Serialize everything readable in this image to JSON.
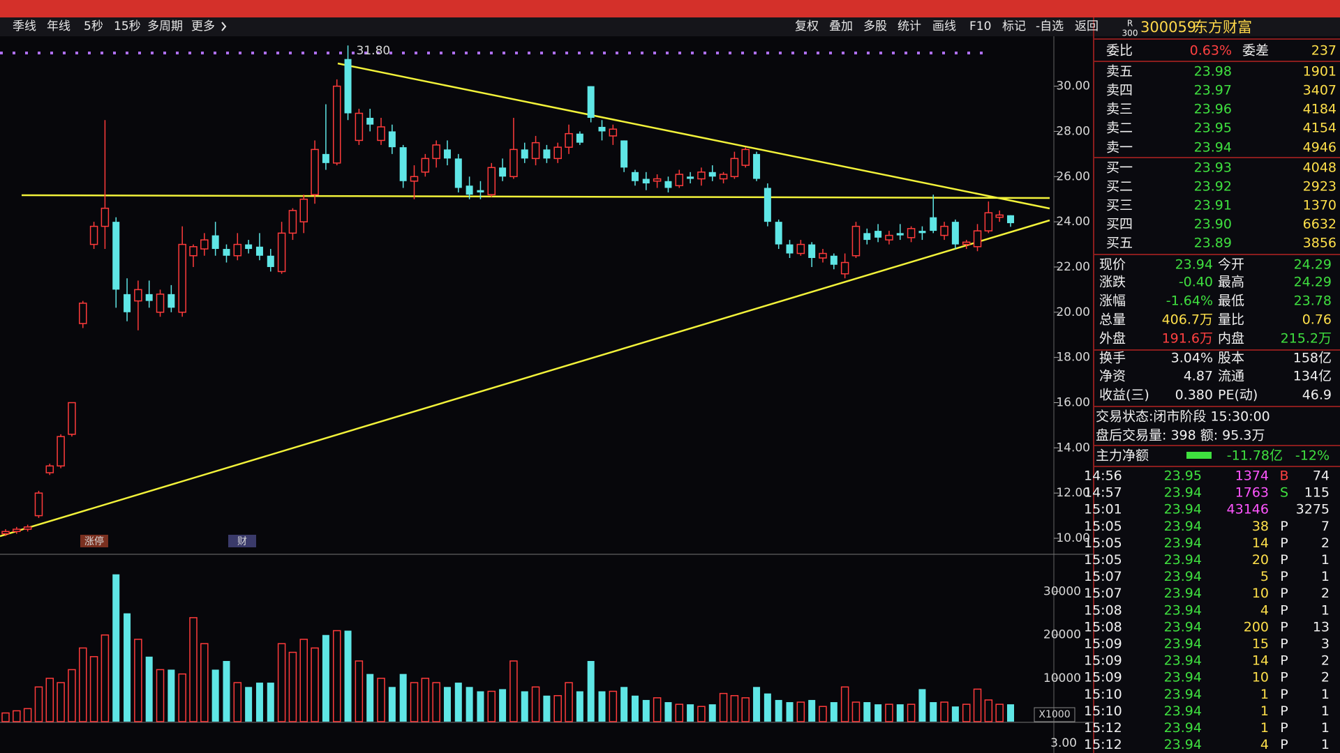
{
  "period_tabs": [
    "季线",
    "年线",
    "5秒",
    "15秒",
    "多周期",
    "更多"
  ],
  "tools": [
    "复权",
    "叠加",
    "多股",
    "统计",
    "画线",
    "F10",
    "标记",
    "-自选",
    "返回"
  ],
  "price_chart": {
    "type": "candlestick",
    "ylim": [
      9.6,
      31.9
    ],
    "yticks": [
      {
        "value": 10,
        "label": "10.00"
      },
      {
        "value": 12,
        "label": "12.00"
      },
      {
        "value": 14,
        "label": "14.00"
      },
      {
        "value": 16,
        "label": "16.00"
      },
      {
        "value": 18,
        "label": "18.00"
      },
      {
        "value": 20,
        "label": "20.00"
      },
      {
        "value": 22,
        "label": "22.00"
      },
      {
        "value": 24,
        "label": "24.00"
      },
      {
        "value": 26,
        "label": "26.00"
      },
      {
        "value": 28,
        "label": "28.00"
      },
      {
        "value": 30,
        "label": "30.00"
      }
    ],
    "open": [
      10.2,
      10.3,
      10.4,
      11.0,
      12.9,
      13.2,
      14.6,
      19.5,
      23.0,
      23.8,
      24.0,
      20.8,
      20.5,
      20.8,
      20.0,
      20.8,
      20.0,
      22.5,
      22.8,
      23.4,
      22.8,
      22.5,
      23.0,
      22.9,
      22.5,
      21.8,
      23.5,
      24.0,
      25.2,
      27.0,
      26.6,
      31.2,
      27.6,
      28.6,
      27.6,
      28.0,
      27.3,
      25.8,
      26.2,
      26.8,
      27.2,
      26.8,
      25.6,
      25.4,
      25.2,
      26.4,
      26.0,
      27.2,
      26.8,
      27.2,
      26.8,
      27.3,
      27.9,
      30.0,
      28.2,
      27.8,
      27.6,
      26.2,
      25.9,
      25.8,
      25.8,
      25.6,
      26.0,
      25.9,
      26.2,
      25.9,
      26.0,
      26.5,
      27.0,
      25.5,
      24.0,
      23.0,
      22.6,
      23.0,
      22.4,
      22.5,
      21.7,
      22.5,
      23.5,
      23.6,
      23.2,
      23.5,
      23.3,
      23.6,
      24.2,
      23.4,
      24.0,
      23.0,
      22.9,
      23.6,
      24.2,
      24.29
    ],
    "high": [
      10.4,
      10.5,
      10.6,
      12.1,
      13.3,
      14.6,
      16.0,
      20.5,
      24.0,
      28.5,
      24.2,
      21.5,
      21.4,
      21.4,
      21.0,
      21.2,
      23.8,
      23.0,
      23.5,
      24.0,
      23.0,
      23.5,
      23.2,
      23.5,
      22.8,
      24.0,
      24.6,
      25.2,
      27.6,
      29.2,
      30.3,
      31.8,
      29.0,
      29.0,
      28.6,
      28.3,
      27.4,
      26.5,
      27.0,
      27.6,
      27.6,
      27.0,
      26.0,
      25.8,
      26.6,
      26.8,
      28.6,
      27.5,
      27.8,
      27.4,
      27.5,
      28.3,
      28.0,
      30.0,
      28.5,
      28.3,
      27.6,
      26.3,
      26.2,
      26.1,
      26.0,
      26.3,
      26.2,
      26.4,
      26.5,
      26.2,
      27.1,
      27.3,
      27.1,
      25.7,
      24.1,
      23.2,
      23.2,
      23.1,
      22.8,
      22.6,
      22.6,
      24.0,
      23.7,
      23.9,
      23.6,
      23.9,
      23.8,
      23.8,
      25.2,
      24.0,
      24.1,
      23.2,
      23.9,
      24.9,
      24.5,
      24.29
    ],
    "low": [
      10.1,
      10.2,
      10.3,
      10.9,
      12.8,
      13.1,
      14.5,
      19.3,
      22.8,
      22.8,
      20.2,
      19.6,
      19.2,
      20.2,
      19.8,
      20.0,
      19.8,
      22.0,
      22.5,
      22.5,
      22.2,
      22.3,
      22.6,
      22.3,
      21.8,
      21.7,
      23.2,
      23.5,
      24.8,
      26.3,
      26.5,
      28.5,
      27.4,
      28.0,
      27.4,
      27.0,
      25.5,
      25.0,
      26.0,
      26.4,
      26.5,
      25.3,
      25.0,
      25.0,
      25.1,
      25.8,
      25.9,
      26.6,
      26.5,
      26.6,
      26.6,
      27.0,
      27.4,
      28.4,
      27.6,
      27.4,
      26.2,
      25.6,
      25.4,
      25.5,
      25.3,
      25.5,
      25.7,
      25.6,
      25.8,
      25.7,
      25.9,
      26.4,
      25.8,
      23.8,
      22.8,
      22.4,
      22.5,
      22.0,
      22.2,
      21.9,
      21.5,
      22.4,
      23.0,
      23.1,
      23.0,
      23.2,
      23.1,
      23.2,
      23.5,
      23.2,
      22.8,
      22.8,
      22.7,
      23.5,
      24.0,
      23.78
    ],
    "close": [
      10.3,
      10.4,
      10.5,
      12.0,
      13.2,
      14.5,
      16.0,
      20.4,
      23.8,
      24.6,
      21.0,
      20.0,
      21.0,
      20.5,
      20.8,
      20.2,
      23.0,
      22.9,
      23.2,
      22.8,
      22.5,
      23.0,
      22.8,
      22.5,
      22.0,
      23.5,
      24.5,
      25.0,
      27.2,
      26.6,
      30.0,
      28.8,
      28.8,
      28.3,
      28.2,
      27.3,
      25.8,
      26.0,
      26.8,
      27.4,
      26.8,
      25.5,
      25.2,
      25.3,
      26.4,
      26.0,
      27.2,
      26.8,
      27.5,
      26.8,
      27.3,
      27.9,
      27.5,
      28.6,
      28.0,
      28.1,
      26.4,
      25.8,
      25.7,
      25.9,
      25.5,
      26.1,
      25.9,
      26.2,
      26.0,
      26.1,
      26.8,
      27.2,
      25.9,
      24.0,
      23.0,
      22.6,
      23.0,
      22.4,
      22.6,
      22.1,
      22.2,
      23.8,
      23.2,
      23.3,
      23.4,
      23.4,
      23.7,
      23.5,
      23.6,
      23.8,
      23.0,
      23.1,
      23.6,
      24.4,
      24.3,
      23.94
    ],
    "high_label": "31.80",
    "markers": [
      "涨停",
      "财"
    ]
  },
  "volume_chart": {
    "type": "bar",
    "ylim": [
      0,
      37500
    ],
    "yticks": [
      10000,
      20000,
      30000
    ],
    "values": [
      2000,
      2500,
      3000,
      8000,
      10000,
      9000,
      12000,
      17000,
      15000,
      20000,
      34000,
      25000,
      19000,
      15000,
      12000,
      12000,
      11000,
      24000,
      18000,
      12000,
      14000,
      9000,
      8000,
      9000,
      9000,
      18000,
      16000,
      19000,
      17000,
      20000,
      21000,
      21000,
      14000,
      11000,
      10000,
      8000,
      11000,
      9000,
      10000,
      9000,
      8000,
      9000,
      8000,
      7000,
      7000,
      7500,
      14000,
      7000,
      8000,
      6000,
      6000,
      9000,
      7000,
      14000,
      7000,
      7000,
      8000,
      6000,
      5000,
      5500,
      4500,
      4000,
      4000,
      3500,
      4000,
      6500,
      6000,
      5500,
      8000,
      6500,
      5000,
      4500,
      4500,
      5000,
      3500,
      4500,
      8000,
      4500,
      4500,
      4000,
      4000,
      4000,
      4000,
      7500,
      4500,
      4500,
      3500,
      4000,
      7500,
      5000,
      4000,
      4000
    ],
    "unit": "X1000"
  },
  "indicator_chart": {
    "tick": "3.00"
  },
  "quote": {
    "badge": [
      "R",
      "300"
    ],
    "code": "300059",
    "name": "东方财富",
    "order_ratio": [
      "委比",
      "0.63%",
      "委差",
      "237"
    ],
    "asks": [
      [
        "卖五",
        "23.98",
        "1901"
      ],
      [
        "卖四",
        "23.97",
        "3407"
      ],
      [
        "卖三",
        "23.96",
        "4184"
      ],
      [
        "卖二",
        "23.95",
        "4154"
      ],
      [
        "卖一",
        "23.94",
        "4946"
      ]
    ],
    "bids": [
      [
        "买一",
        "23.93",
        "4048"
      ],
      [
        "买二",
        "23.92",
        "2923"
      ],
      [
        "买三",
        "23.91",
        "1370"
      ],
      [
        "买四",
        "23.90",
        "6632"
      ],
      [
        "买五",
        "23.89",
        "3856"
      ]
    ],
    "stats": [
      [
        "现价",
        "23.94",
        "今开",
        "24.29"
      ],
      [
        "涨跌",
        "-0.40",
        "最高",
        "24.29"
      ],
      [
        "涨幅",
        "-1.64%",
        "最低",
        "23.78"
      ],
      [
        "总量",
        "406.7万",
        "量比",
        "0.76"
      ],
      [
        "外盘",
        "191.6万",
        "内盘",
        "215.2万"
      ],
      [
        "换手",
        "3.04%",
        "股本",
        "158亿"
      ],
      [
        "净资",
        "4.87",
        "流通",
        "134亿"
      ],
      [
        "收益(三)",
        "0.380",
        "PE(动)",
        "46.9"
      ]
    ],
    "status": [
      "交易状态:闭市阶段 15:30:00",
      "盘后交易量: 398 额: 95.3万"
    ],
    "main_force": [
      "主力净额",
      "-11.78亿",
      "-12%"
    ],
    "trades": [
      {
        "time": "14:56",
        "price": "23.95",
        "volume": "1374",
        "flag": "B",
        "count": "74"
      },
      {
        "time": "14:57",
        "price": "23.94",
        "volume": "1763",
        "flag": "S",
        "count": "115"
      },
      {
        "time": "15:01",
        "price": "23.94",
        "volume": "43146",
        "count": "3275"
      },
      {
        "time": "15:05",
        "price": "23.94",
        "volume": "38",
        "flag": "P",
        "count": "7"
      },
      {
        "time": "15:05",
        "price": "23.94",
        "volume": "14",
        "flag": "P",
        "count": "2"
      },
      {
        "time": "15:05",
        "price": "23.94",
        "volume": "20",
        "flag": "P",
        "count": "1"
      },
      {
        "time": "15:07",
        "price": "23.94",
        "volume": "5",
        "flag": "P",
        "count": "1"
      },
      {
        "time": "15:07",
        "price": "23.94",
        "volume": "10",
        "flag": "P",
        "count": "2"
      },
      {
        "time": "15:08",
        "price": "23.94",
        "volume": "4",
        "flag": "P",
        "count": "1"
      },
      {
        "time": "15:08",
        "price": "23.94",
        "volume": "200",
        "flag": "P",
        "count": "13"
      },
      {
        "time": "15:09",
        "price": "23.94",
        "volume": "15",
        "flag": "P",
        "count": "3"
      },
      {
        "time": "15:09",
        "price": "23.94",
        "volume": "14",
        "flag": "P",
        "count": "2"
      },
      {
        "time": "15:09",
        "price": "23.94",
        "volume": "10",
        "flag": "P",
        "count": "2"
      },
      {
        "time": "15:10",
        "price": "23.94",
        "volume": "1",
        "flag": "P",
        "count": "1"
      },
      {
        "time": "15:10",
        "price": "23.94",
        "volume": "1",
        "flag": "P",
        "count": "1"
      },
      {
        "time": "15:12",
        "price": "23.94",
        "volume": "1",
        "flag": "P",
        "count": "1"
      },
      {
        "time": "15:12",
        "price": "23.94",
        "volume": "4",
        "flag": "P",
        "count": "1"
      }
    ]
  }
}
